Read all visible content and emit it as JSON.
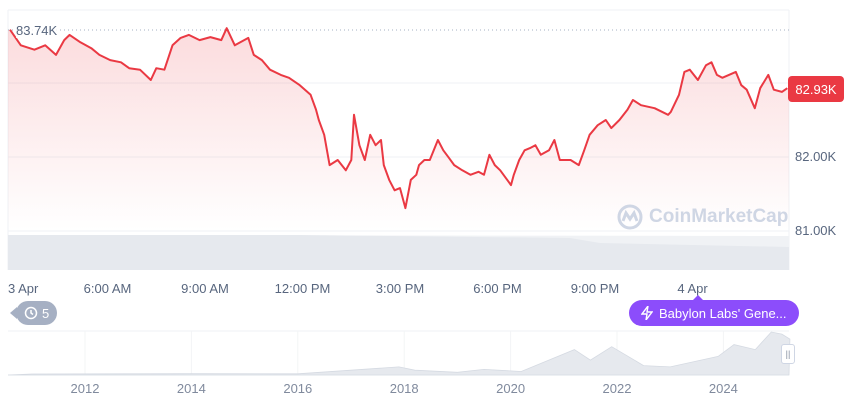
{
  "chart_data": {
    "type": "line",
    "currency_unit": "K",
    "max_label": "83.74K",
    "current_label": "82.93K",
    "current_value": 82.93,
    "y_ticks": [
      {
        "value": 83.0,
        "label": ""
      },
      {
        "value": 82.0,
        "label": "82.00K"
      },
      {
        "value": 81.0,
        "label": "81.00K"
      }
    ],
    "x_ticks": [
      {
        "t": "3 Apr 03:00",
        "label": "3 Apr"
      },
      {
        "t": "3 Apr 06:00",
        "label": "6:00 AM"
      },
      {
        "t": "3 Apr 09:00",
        "label": "9:00 AM"
      },
      {
        "t": "3 Apr 12:00",
        "label": "12:00 PM"
      },
      {
        "t": "3 Apr 15:00",
        "label": "3:00 PM"
      },
      {
        "t": "3 Apr 18:00",
        "label": "6:00 PM"
      },
      {
        "t": "3 Apr 21:00",
        "label": "9:00 PM"
      },
      {
        "t": "4 Apr 00:00",
        "label": "4 Apr"
      }
    ],
    "grid": true,
    "colors": {
      "line": "#ea3943",
      "fill": "#ea3943",
      "volume": "#e9ecf1",
      "event": "#8c4dfb"
    },
    "series": [
      {
        "values": [
          [
            "3 Apr 03:00",
            83.72
          ],
          [
            "3 Apr 03:20",
            83.51
          ],
          [
            "3 Apr 03:45",
            83.45
          ],
          [
            "3 Apr 04:05",
            83.51
          ],
          [
            "3 Apr 04:25",
            83.38
          ],
          [
            "3 Apr 04:40",
            83.58
          ],
          [
            "3 Apr 04:50",
            83.65
          ],
          [
            "3 Apr 05:10",
            83.55
          ],
          [
            "3 Apr 05:30",
            83.47
          ],
          [
            "3 Apr 05:45",
            83.38
          ],
          [
            "3 Apr 06:05",
            83.31
          ],
          [
            "3 Apr 06:25",
            83.28
          ],
          [
            "3 Apr 06:40",
            83.2
          ],
          [
            "3 Apr 07:00",
            83.18
          ],
          [
            "3 Apr 07:20",
            83.04
          ],
          [
            "3 Apr 07:30",
            83.2
          ],
          [
            "3 Apr 07:45",
            83.18
          ],
          [
            "3 Apr 08:00",
            83.51
          ],
          [
            "3 Apr 08:15",
            83.61
          ],
          [
            "3 Apr 08:30",
            83.65
          ],
          [
            "3 Apr 08:50",
            83.58
          ],
          [
            "3 Apr 09:10",
            83.62
          ],
          [
            "3 Apr 09:30",
            83.58
          ],
          [
            "3 Apr 09:40",
            83.74
          ],
          [
            "3 Apr 09:55",
            83.51
          ],
          [
            "3 Apr 10:20",
            83.61
          ],
          [
            "3 Apr 10:30",
            83.38
          ],
          [
            "3 Apr 10:45",
            83.31
          ],
          [
            "3 Apr 11:00",
            83.18
          ],
          [
            "3 Apr 11:20",
            83.11
          ],
          [
            "3 Apr 11:35",
            83.07
          ],
          [
            "3 Apr 11:55",
            82.97
          ],
          [
            "3 Apr 12:15",
            82.84
          ],
          [
            "3 Apr 12:25",
            82.64
          ],
          [
            "3 Apr 12:30",
            82.5
          ],
          [
            "3 Apr 12:40",
            82.3
          ],
          [
            "3 Apr 12:50",
            81.89
          ],
          [
            "3 Apr 13:05",
            81.96
          ],
          [
            "3 Apr 13:20",
            81.82
          ],
          [
            "3 Apr 13:30",
            81.96
          ],
          [
            "3 Apr 13:35",
            82.57
          ],
          [
            "3 Apr 13:45",
            82.16
          ],
          [
            "3 Apr 13:55",
            81.96
          ],
          [
            "3 Apr 14:05",
            82.3
          ],
          [
            "3 Apr 14:15",
            82.16
          ],
          [
            "3 Apr 14:25",
            82.23
          ],
          [
            "3 Apr 14:30",
            81.89
          ],
          [
            "3 Apr 14:40",
            81.69
          ],
          [
            "3 Apr 14:50",
            81.55
          ],
          [
            "3 Apr 15:00",
            81.58
          ],
          [
            "3 Apr 15:10",
            81.31
          ],
          [
            "3 Apr 15:20",
            81.69
          ],
          [
            "3 Apr 15:30",
            81.76
          ],
          [
            "3 Apr 15:35",
            81.89
          ],
          [
            "3 Apr 15:45",
            81.96
          ],
          [
            "3 Apr 15:55",
            81.96
          ],
          [
            "3 Apr 16:10",
            82.23
          ],
          [
            "3 Apr 16:20",
            82.09
          ],
          [
            "3 Apr 16:30",
            81.99
          ],
          [
            "3 Apr 16:40",
            81.89
          ],
          [
            "3 Apr 16:55",
            81.82
          ],
          [
            "3 Apr 17:10",
            81.76
          ],
          [
            "3 Apr 17:25",
            81.8
          ],
          [
            "3 Apr 17:35",
            81.76
          ],
          [
            "3 Apr 17:45",
            82.03
          ],
          [
            "3 Apr 17:55",
            81.89
          ],
          [
            "3 Apr 18:05",
            81.82
          ],
          [
            "3 Apr 18:15",
            81.72
          ],
          [
            "3 Apr 18:25",
            81.62
          ],
          [
            "3 Apr 18:30",
            81.76
          ],
          [
            "3 Apr 18:40",
            81.96
          ],
          [
            "3 Apr 18:50",
            82.09
          ],
          [
            "3 Apr 19:00",
            82.12
          ],
          [
            "3 Apr 19:10",
            82.16
          ],
          [
            "3 Apr 19:20",
            82.03
          ],
          [
            "3 Apr 19:35",
            82.09
          ],
          [
            "3 Apr 19:45",
            82.23
          ],
          [
            "3 Apr 19:55",
            81.96
          ],
          [
            "3 Apr 20:15",
            81.96
          ],
          [
            "3 Apr 20:30",
            81.89
          ],
          [
            "3 Apr 20:40",
            82.09
          ],
          [
            "3 Apr 20:50",
            82.3
          ],
          [
            "3 Apr 21:05",
            82.43
          ],
          [
            "3 Apr 21:20",
            82.5
          ],
          [
            "3 Apr 21:30",
            82.39
          ],
          [
            "3 Apr 21:45",
            82.5
          ],
          [
            "3 Apr 22:00",
            82.64
          ],
          [
            "3 Apr 22:10",
            82.77
          ],
          [
            "3 Apr 22:25",
            82.7
          ],
          [
            "3 Apr 22:50",
            82.66
          ],
          [
            "3 Apr 23:15",
            82.57
          ],
          [
            "3 Apr 23:20",
            82.61
          ],
          [
            "3 Apr 23:35",
            82.84
          ],
          [
            "3 Apr 23:45",
            83.15
          ],
          [
            "3 Apr 23:55",
            83.18
          ],
          [
            "4 Apr 00:10",
            83.04
          ],
          [
            "4 Apr 00:25",
            83.24
          ],
          [
            "4 Apr 00:35",
            83.28
          ],
          [
            "4 Apr 00:45",
            83.11
          ],
          [
            "4 Apr 00:55",
            83.07
          ],
          [
            "4 Apr 01:20",
            83.15
          ],
          [
            "4 Apr 01:30",
            82.97
          ],
          [
            "4 Apr 01:40",
            82.91
          ],
          [
            "4 Apr 01:55",
            82.66
          ],
          [
            "4 Apr 02:05",
            82.93
          ],
          [
            "4 Apr 02:20",
            83.11
          ],
          [
            "4 Apr 02:30",
            82.91
          ],
          [
            "4 Apr 02:45",
            82.88
          ],
          [
            "4 Apr 02:55",
            82.93
          ]
        ]
      }
    ],
    "navigator": {
      "year_ticks": [
        "2012",
        "2014",
        "2016",
        "2018",
        "2020",
        "2022",
        "2024"
      ],
      "values": [
        [
          2011,
          0
        ],
        [
          2013,
          0.5
        ],
        [
          2014,
          0.6
        ],
        [
          2016,
          0.5
        ],
        [
          2017.9,
          17
        ],
        [
          2018.2,
          9
        ],
        [
          2019,
          4
        ],
        [
          2019.5,
          11
        ],
        [
          2020.2,
          6
        ],
        [
          2021.2,
          58
        ],
        [
          2021.5,
          33
        ],
        [
          2021.9,
          65
        ],
        [
          2022.5,
          20
        ],
        [
          2023,
          17
        ],
        [
          2023.9,
          42
        ],
        [
          2024.2,
          70
        ],
        [
          2024.6,
          58
        ],
        [
          2024.9,
          100
        ],
        [
          2025.1,
          95
        ],
        [
          2025.25,
          83
        ]
      ]
    }
  },
  "history_badge": {
    "icon": "history-icon",
    "count": "5"
  },
  "event_badge": {
    "icon": "lightning-icon",
    "label": "Babylon Labs' Gene..."
  },
  "watermark": "CoinMarketCap"
}
